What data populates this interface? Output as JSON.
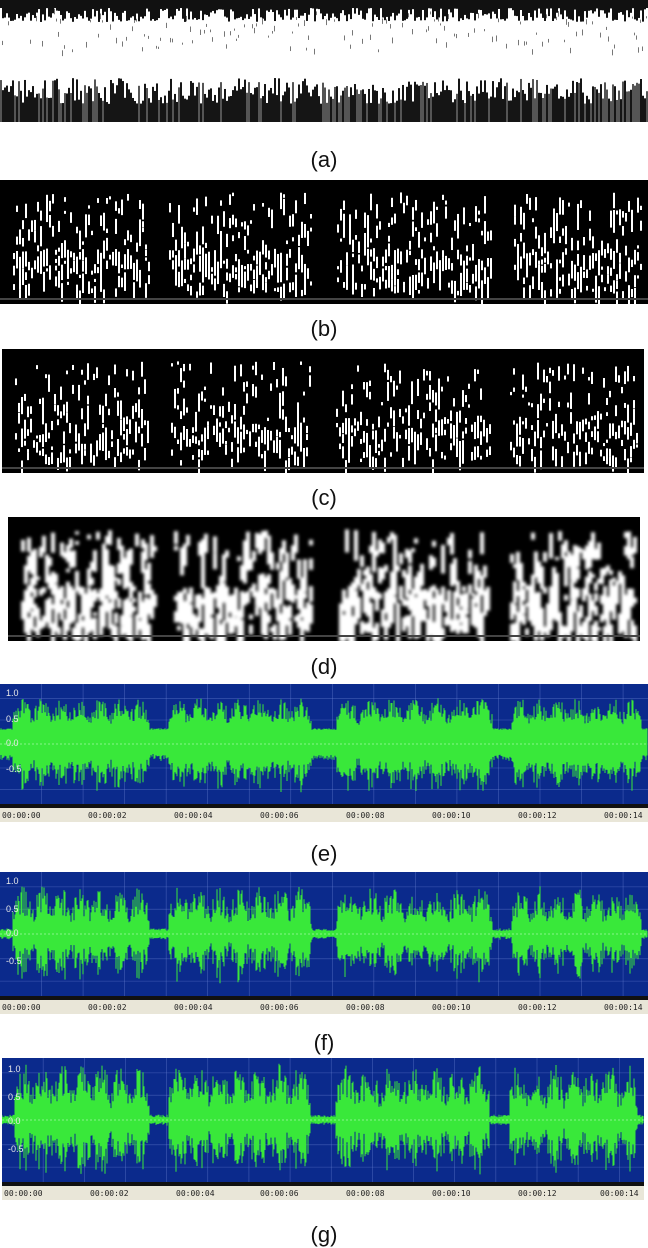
{
  "captions": [
    "(a)",
    "(b)",
    "(c)",
    "(d)",
    "(e)",
    "(f)",
    "(g)"
  ],
  "waveform": {
    "amplitude_labels": [
      "1.0",
      "0.5",
      "0.0",
      "-0.5"
    ],
    "time_labels": [
      "00:00:00",
      "00:00:02",
      "00:00:04",
      "00:00:06",
      "00:00:08",
      "00:00:10",
      "00:00:12",
      "00:00:14"
    ],
    "colors": {
      "background": "#0b2a8c",
      "wave": "#39e83a",
      "grid": "#6e86d6",
      "timeline": "#e9e6d8"
    }
  },
  "spectrograms": {
    "colors": {
      "background": "#000000",
      "energy": "#ffffff"
    }
  }
}
